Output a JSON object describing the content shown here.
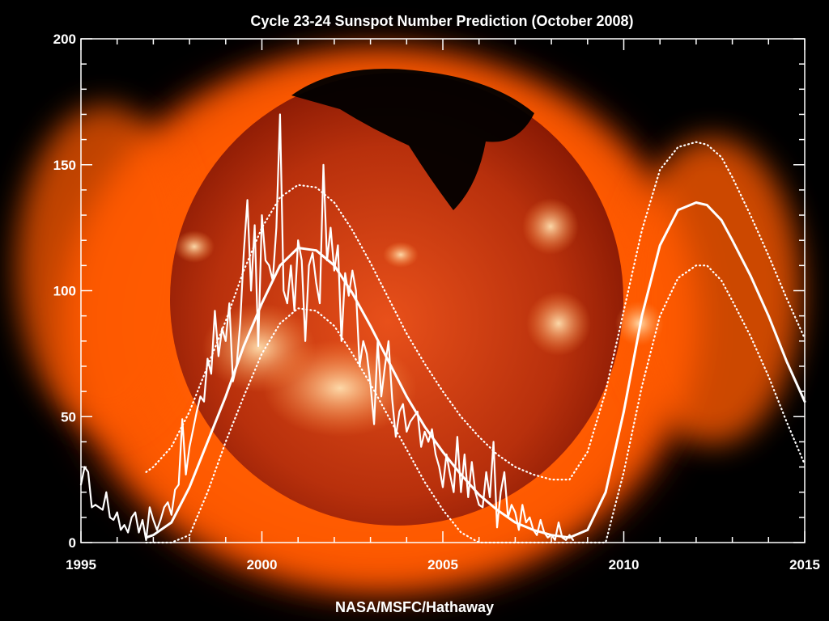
{
  "chart_data": {
    "type": "line",
    "title": "Cycle 23-24 Sunspot Number Prediction (October 2008)",
    "credit": "NASA/MSFC/Hathaway",
    "xlabel": "",
    "ylabel": "",
    "xlim": [
      1995,
      2015
    ],
    "ylim": [
      0,
      200
    ],
    "x_ticks": [
      1995,
      2000,
      2005,
      2010,
      2015
    ],
    "y_ticks": [
      0,
      50,
      100,
      150,
      200
    ],
    "grid": false,
    "legend": "none",
    "background": "x-ray image of the Sun (orange corona on black)",
    "colors": {
      "line": "#ffffff",
      "text": "#ffffff",
      "axes": "#ffffff",
      "sky": "#000000",
      "corona": "#ff5a00"
    },
    "series": [
      {
        "style": "monthly-jagged",
        "x": [
          1995.0,
          1995.1,
          1995.2,
          1995.3,
          1995.4,
          1995.5,
          1995.6,
          1995.7,
          1995.8,
          1995.9,
          1996.0,
          1996.1,
          1996.2,
          1996.3,
          1996.4,
          1996.5,
          1996.6,
          1996.7,
          1996.8,
          1996.9,
          1997.0,
          1997.1,
          1997.2,
          1997.3,
          1997.4,
          1997.5,
          1997.6,
          1997.7,
          1997.8,
          1997.9,
          1998.0,
          1998.1,
          1998.2,
          1998.3,
          1998.4,
          1998.5,
          1998.6,
          1998.7,
          1998.8,
          1998.9,
          1999.0,
          1999.1,
          1999.2,
          1999.3,
          1999.4,
          1999.5,
          1999.6,
          1999.7,
          1999.8,
          1999.9,
          2000.0,
          2000.1,
          2000.2,
          2000.3,
          2000.4,
          2000.5,
          2000.6,
          2000.7,
          2000.8,
          2000.9,
          2001.0,
          2001.1,
          2001.2,
          2001.3,
          2001.4,
          2001.5,
          2001.6,
          2001.7,
          2001.8,
          2001.9,
          2002.0,
          2002.1,
          2002.2,
          2002.3,
          2002.4,
          2002.5,
          2002.6,
          2002.7,
          2002.8,
          2002.9,
          2003.0,
          2003.1,
          2003.2,
          2003.3,
          2003.4,
          2003.5,
          2003.6,
          2003.7,
          2003.8,
          2003.9,
          2004.0,
          2004.1,
          2004.2,
          2004.3,
          2004.4,
          2004.5,
          2004.6,
          2004.7,
          2004.8,
          2004.9,
          2005.0,
          2005.1,
          2005.2,
          2005.3,
          2005.4,
          2005.5,
          2005.6,
          2005.7,
          2005.8,
          2005.9,
          2006.0,
          2006.1,
          2006.2,
          2006.3,
          2006.4,
          2006.5,
          2006.6,
          2006.7,
          2006.8,
          2006.9,
          2007.0,
          2007.1,
          2007.2,
          2007.3,
          2007.4,
          2007.5,
          2007.6,
          2007.7,
          2007.8,
          2007.9,
          2008.0,
          2008.1,
          2008.2,
          2008.3,
          2008.4,
          2008.5,
          2008.6
        ],
        "y": [
          23,
          30,
          28,
          14,
          15,
          14,
          13,
          20,
          10,
          9,
          12,
          5,
          7,
          4,
          10,
          12,
          4,
          9,
          1,
          14,
          9,
          5,
          9,
          14,
          16,
          11,
          21,
          23,
          49,
          27,
          38,
          45,
          52,
          58,
          56,
          73,
          67,
          92,
          74,
          85,
          80,
          95,
          64,
          70,
          87,
          115,
          136,
          100,
          126,
          78,
          130,
          112,
          110,
          104,
          125,
          170,
          100,
          95,
          110,
          92,
          120,
          112,
          80,
          110,
          115,
          103,
          95,
          150,
          112,
          125,
          108,
          118,
          80,
          107,
          98,
          108,
          100,
          70,
          80,
          75,
          63,
          47,
          80,
          58,
          70,
          80,
          57,
          42,
          52,
          55,
          44,
          48,
          50,
          52,
          38,
          44,
          40,
          45,
          35,
          30,
          22,
          35,
          27,
          20,
          42,
          20,
          35,
          18,
          32,
          20,
          15,
          14,
          28,
          18,
          40,
          6,
          20,
          28,
          10,
          15,
          12,
          5,
          15,
          8,
          10,
          5,
          3,
          9,
          4,
          2,
          3,
          1,
          8,
          2,
          1,
          3,
          1
        ]
      },
      {
        "style": "smooth-solid",
        "x": [
          1996.8,
          1997.0,
          1997.5,
          1998.0,
          1998.5,
          1999.0,
          1999.5,
          2000.0,
          2000.5,
          2001.0,
          2001.5,
          2002.0,
          2002.5,
          2003.0,
          2003.5,
          2004.0,
          2004.5,
          2005.0,
          2005.5,
          2006.0,
          2006.5,
          2007.0,
          2007.5,
          2008.0,
          2008.5,
          2009.0,
          2009.5,
          2010.0,
          2010.5,
          2011.0,
          2011.5,
          2012.0,
          2012.3,
          2012.7,
          2013.0,
          2013.5,
          2014.0,
          2014.5,
          2015.0
        ],
        "y": [
          2,
          3,
          8,
          22,
          40,
          58,
          78,
          95,
          110,
          117,
          116,
          110,
          99,
          86,
          72,
          58,
          46,
          36,
          27,
          19,
          13,
          8,
          5,
          3,
          2,
          5,
          20,
          52,
          90,
          118,
          132,
          135,
          134,
          128,
          120,
          106,
          90,
          72,
          56
        ]
      },
      {
        "style": "smooth-dotted-upper",
        "x": [
          1996.8,
          1997.0,
          1997.5,
          1998.0,
          1998.5,
          1999.0,
          1999.5,
          2000.0,
          2000.5,
          2001.0,
          2001.5,
          2002.0,
          2002.5,
          2003.0,
          2003.5,
          2004.0,
          2004.5,
          2005.0,
          2005.5,
          2006.0,
          2006.5,
          2007.0,
          2007.5,
          2008.0,
          2008.5,
          2009.0,
          2009.5,
          2010.0,
          2010.5,
          2011.0,
          2011.5,
          2012.0,
          2012.3,
          2012.7,
          2013.0,
          2013.5,
          2014.0,
          2014.5,
          2015.0
        ],
        "y": [
          28,
          30,
          38,
          52,
          70,
          88,
          108,
          125,
          137,
          142,
          141,
          135,
          124,
          111,
          97,
          83,
          71,
          60,
          50,
          42,
          35,
          30,
          27,
          25,
          25,
          36,
          60,
          92,
          124,
          148,
          157,
          159,
          158,
          153,
          145,
          130,
          114,
          97,
          81
        ]
      },
      {
        "style": "smooth-dotted-lower",
        "x": [
          1996.8,
          1997.0,
          1997.5,
          1998.0,
          1998.5,
          1999.0,
          1999.5,
          2000.0,
          2000.5,
          2001.0,
          2001.5,
          2002.0,
          2002.5,
          2003.0,
          2003.5,
          2004.0,
          2004.5,
          2005.0,
          2005.5,
          2006.0,
          2006.5,
          2007.0,
          2007.5,
          2008.0,
          2008.5,
          2009.0,
          2009.5,
          2010.0,
          2010.5,
          2011.0,
          2011.5,
          2012.0,
          2012.3,
          2012.7,
          2013.0,
          2013.5,
          2014.0,
          2014.5,
          2015.0
        ],
        "y": [
          0,
          0,
          0,
          3,
          20,
          40,
          58,
          75,
          87,
          93,
          92,
          86,
          75,
          63,
          50,
          37,
          24,
          13,
          4,
          0,
          0,
          0,
          0,
          0,
          0,
          0,
          0,
          28,
          62,
          90,
          105,
          110,
          110,
          104,
          96,
          82,
          66,
          48,
          31
        ]
      }
    ]
  }
}
